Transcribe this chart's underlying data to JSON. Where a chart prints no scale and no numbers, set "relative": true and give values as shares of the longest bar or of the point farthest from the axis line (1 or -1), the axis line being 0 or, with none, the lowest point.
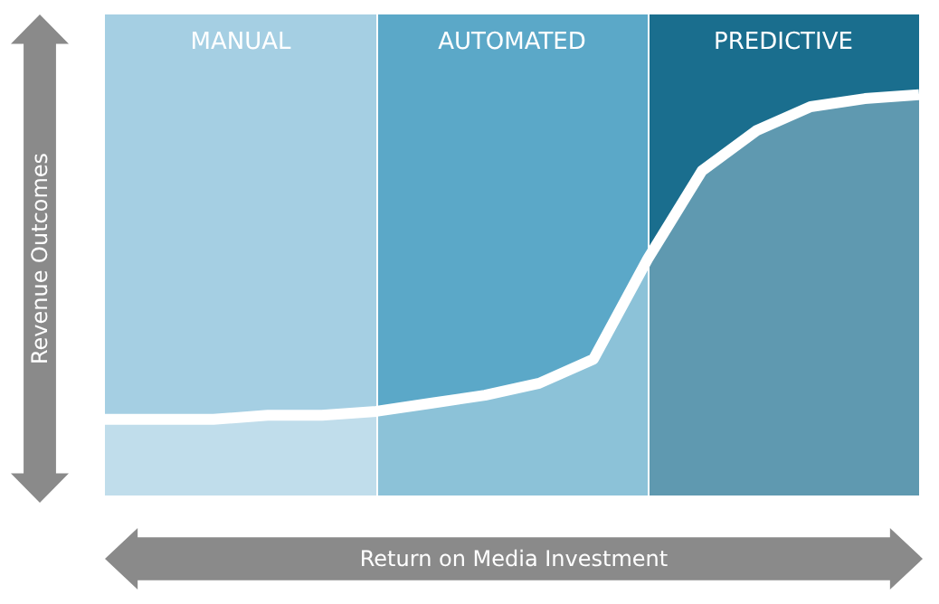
{
  "chart_data": {
    "type": "area",
    "relative": true,
    "xlabel": "Return on Media Investment",
    "ylabel": "Revenue Outcomes",
    "categories": [
      null,
      null,
      null,
      null,
      null,
      null,
      null,
      null,
      null,
      null,
      null,
      null,
      null,
      null,
      null,
      null
    ],
    "series": [
      {
        "color": "#ffffff",
        "values": [
          0.19,
          0.19,
          0.19,
          0.2,
          0.2,
          0.21,
          0.23,
          0.25,
          0.28,
          0.34,
          0.59,
          0.81,
          0.91,
          0.97,
          0.99,
          1
        ]
      }
    ],
    "annotations": [
      "MANUAL",
      "AUTOMATED",
      "PREDICTIVE"
    ]
  }
}
